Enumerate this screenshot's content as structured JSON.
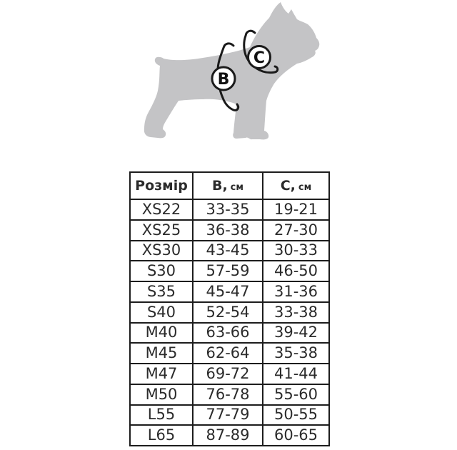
{
  "diagram": {
    "dog_color": "#c4c4c6",
    "line_color": "#1a1a1a",
    "marker_b": "B",
    "marker_c": "C"
  },
  "table": {
    "border_color": "#1d1d1d",
    "text_color": "#2b2b2b",
    "headers": {
      "size": "Розмір",
      "b_letter": "B,",
      "b_unit": "см",
      "c_letter": "C,",
      "c_unit": "см"
    }
  },
  "chart_data": {
    "type": "table",
    "columns": [
      "Розмір",
      "B, см",
      "C, см"
    ],
    "rows": [
      [
        "XS22",
        "33-35",
        "19-21"
      ],
      [
        "XS25",
        "36-38",
        "27-30"
      ],
      [
        "XS30",
        "43-45",
        "30-33"
      ],
      [
        "S30",
        "57-59",
        "46-50"
      ],
      [
        "S35",
        "45-47",
        "31-36"
      ],
      [
        "S40",
        "52-54",
        "33-38"
      ],
      [
        "M40",
        "63-66",
        "39-42"
      ],
      [
        "M45",
        "62-64",
        "35-38"
      ],
      [
        "M47",
        "69-72",
        "41-44"
      ],
      [
        "M50",
        "76-78",
        "55-60"
      ],
      [
        "L55",
        "77-79",
        "50-55"
      ],
      [
        "L65",
        "87-89",
        "60-65"
      ]
    ]
  }
}
